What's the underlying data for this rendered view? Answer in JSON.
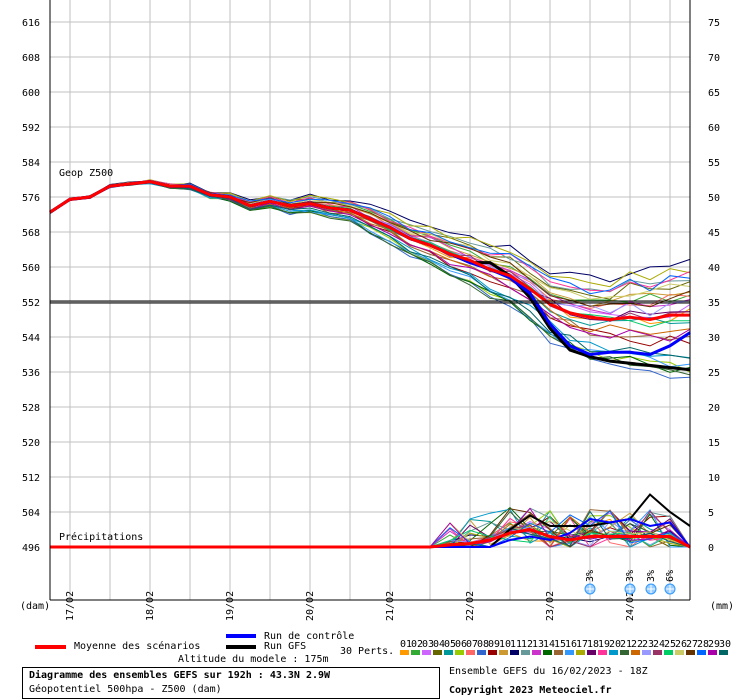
{
  "chart_data": {
    "type": "line",
    "geop_label": "Geop Z500",
    "precip_label": "Précipitations",
    "left_axis_unit": "(dam)",
    "right_axis_unit": "(mm)",
    "left_ticks": [
      616,
      608,
      600,
      592,
      584,
      576,
      568,
      560,
      552,
      544,
      536,
      528,
      520,
      512,
      504,
      496
    ],
    "right_ticks": [
      75,
      70,
      65,
      60,
      55,
      50,
      45,
      40,
      35,
      30,
      25,
      20,
      15,
      10,
      5,
      0
    ],
    "date_labels": [
      "17/02",
      "18/02",
      "19/02",
      "20/02",
      "21/02",
      "22/02",
      "23/02",
      "24/02"
    ],
    "reference_line_dam": 552,
    "snow_labels": [
      "3%",
      "3%",
      "3%",
      "6%"
    ],
    "x_hours": [
      0,
      6,
      12,
      18,
      24,
      30,
      36,
      42,
      48,
      54,
      60,
      66,
      72,
      78,
      84,
      90,
      96,
      102,
      108,
      114,
      120,
      126,
      132,
      138,
      144,
      150,
      156,
      162,
      168,
      174,
      180,
      186,
      192
    ],
    "z500_mean": [
      572.5,
      575.5,
      576,
      578.5,
      579,
      579.5,
      578.5,
      578.5,
      576.5,
      576,
      574,
      575,
      574,
      574.5,
      573.5,
      573,
      571,
      569,
      566.5,
      565,
      563,
      561.5,
      559.5,
      558,
      555,
      551.5,
      549.5,
      548.5,
      548,
      548.5,
      548,
      549,
      549
    ],
    "z500_control": [
      572.5,
      575.5,
      576,
      578.5,
      579,
      579.5,
      578.5,
      578.5,
      576.5,
      576,
      574,
      575,
      574,
      574.5,
      573.5,
      573,
      571,
      569,
      566.5,
      565,
      563,
      561,
      559.5,
      557.5,
      554,
      547,
      542,
      540,
      540.5,
      540.5,
      540,
      542,
      545
    ],
    "z500_gfs": [
      572.5,
      575.5,
      576,
      578.5,
      579,
      579.5,
      578.5,
      578.5,
      576.5,
      576,
      574,
      575,
      574,
      574.5,
      573.5,
      573,
      571,
      569,
      566.5,
      565,
      563,
      561,
      561,
      558,
      553,
      546,
      541,
      539.5,
      538.5,
      538,
      537.5,
      537,
      536.5
    ],
    "precip_mean": [
      0,
      0,
      0,
      0,
      0,
      0,
      0,
      0,
      0,
      0,
      0,
      0,
      0,
      0,
      0,
      0,
      0,
      0,
      0,
      0,
      0.3,
      0.5,
      1,
      2,
      2.5,
      1.5,
      1,
      1.5,
      1.5,
      1.5,
      1.5,
      1.5,
      0
    ],
    "precip_control": [
      0,
      0,
      0,
      0,
      0,
      0,
      0,
      0,
      0,
      0,
      0,
      0,
      0,
      0,
      0,
      0,
      0,
      0,
      0,
      0,
      0,
      0,
      0,
      1,
      1.5,
      1,
      2,
      4,
      3.5,
      4,
      3,
      3.5,
      0
    ],
    "precip_gfs": [
      0,
      0,
      0,
      0,
      0,
      0,
      0,
      0,
      0,
      0,
      0,
      0,
      0,
      0,
      0,
      0,
      0,
      0,
      0,
      0,
      0,
      0,
      0,
      2.5,
      4.5,
      3,
      3,
      3,
      3.5,
      4,
      7.5,
      5,
      3
    ]
  },
  "colors": {
    "mean": "#ff0000",
    "control": "#0000ff",
    "gfs": "#000000",
    "grid": "#c0c0c0",
    "members": [
      "#ff9900",
      "#33aa33",
      "#cc66ff",
      "#666600",
      "#009999",
      "#99cc00",
      "#ff6666",
      "#3366cc",
      "#990000",
      "#cc9933",
      "#000066",
      "#669999",
      "#cc33cc",
      "#006600",
      "#996633",
      "#3399ff",
      "#aaaa00",
      "#660066",
      "#ff3399",
      "#0099cc",
      "#336633",
      "#cc6600",
      "#9999ff",
      "#993366",
      "#00cc66",
      "#cccc66",
      "#663300",
      "#0066ff",
      "#aa00aa",
      "#006666"
    ]
  },
  "legend": {
    "mean": "Moyenne des scénarios",
    "control": "Run de contrôle",
    "gfs": "Run GFS",
    "altitude": "Altitude du modele : 175m",
    "perts": "30 Perts.",
    "members": [
      "01",
      "02",
      "03",
      "04",
      "05",
      "06",
      "07",
      "08",
      "09",
      "10",
      "11",
      "12",
      "13",
      "14",
      "15",
      "16",
      "17",
      "18",
      "19",
      "20",
      "21",
      "22",
      "23",
      "24",
      "25",
      "26",
      "27",
      "28",
      "29",
      "30"
    ]
  },
  "footer": {
    "title": "Diagramme des ensembles GEFS sur 192h : 43.3N 2.9W",
    "subtitle": "Géopotentiel 500hpa - Z500 (dam)",
    "ensemble_info": "Ensemble GEFS du 16/02/2023 - 18Z",
    "copyright": "Copyright 2023 Meteociel.fr"
  }
}
